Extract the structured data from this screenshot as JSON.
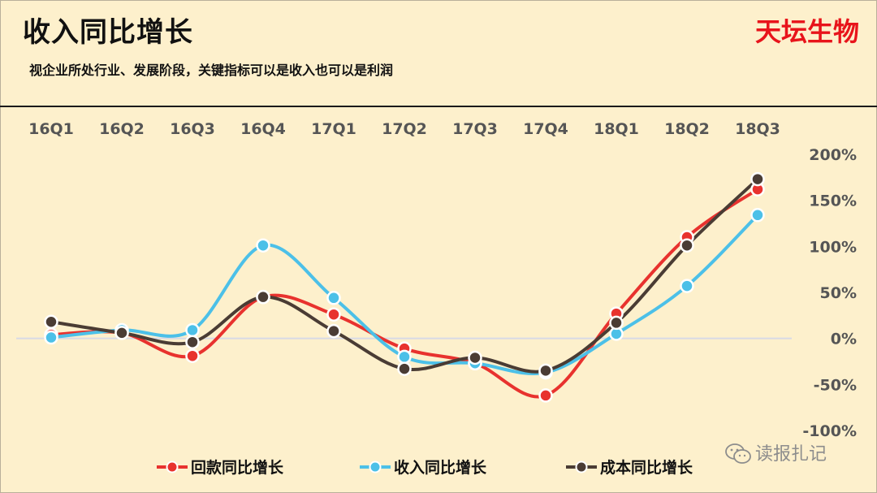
{
  "header": {
    "title": "收入同比增长",
    "brand": "天坛生物",
    "subtitle": "视企业所处行业、发展阶段，关键指标可以是收入也可以是利润"
  },
  "watermark": {
    "text": "读报扎记",
    "icon": "wechat-icon"
  },
  "colors": {
    "background": "#fdf0cc",
    "series_red": "#e8322e",
    "series_blue": "#4cc0e8",
    "series_black": "#4a3c34"
  },
  "chart_data": {
    "type": "line",
    "title": "",
    "xlabel": "",
    "ylabel": "",
    "categories": [
      "16Q1",
      "16Q2",
      "16Q3",
      "16Q4",
      "17Q1",
      "17Q2",
      "17Q3",
      "17Q4",
      "18Q1",
      "18Q2",
      "18Q3"
    ],
    "x_axis_position": "top",
    "y_axis_position": "right",
    "y_ticks": [
      "200%",
      "150%",
      "100%",
      "50%",
      "0%",
      "-50%",
      "-100%"
    ],
    "ylim": [
      -100,
      200
    ],
    "grid": false,
    "smooth": true,
    "legend_position": "bottom",
    "series": [
      {
        "name": "回款同比增长",
        "color": "#e8322e",
        "values": [
          4,
          6,
          -19,
          45,
          26,
          -11,
          -27,
          -62,
          27,
          110,
          162
        ]
      },
      {
        "name": "收入同比增长",
        "color": "#4cc0e8",
        "values": [
          1,
          9,
          9,
          101,
          44,
          -20,
          -27,
          -37,
          5,
          57,
          134
        ]
      },
      {
        "name": "成本同比增长",
        "color": "#4a3c34",
        "values": [
          18,
          6,
          -4,
          45,
          8,
          -33,
          -21,
          -35,
          17,
          101,
          173
        ]
      }
    ]
  }
}
